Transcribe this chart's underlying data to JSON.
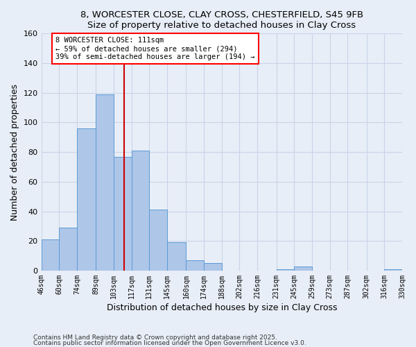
{
  "title1": "8, WORCESTER CLOSE, CLAY CROSS, CHESTERFIELD, S45 9FB",
  "title2": "Size of property relative to detached houses in Clay Cross",
  "xlabel": "Distribution of detached houses by size in Clay Cross",
  "ylabel": "Number of detached properties",
  "bin_edges": [
    46,
    60,
    74,
    89,
    103,
    117,
    131,
    145,
    160,
    174,
    188,
    202,
    216,
    231,
    245,
    259,
    273,
    287,
    302,
    316,
    330
  ],
  "bar_heights": [
    21,
    29,
    96,
    119,
    77,
    81,
    41,
    19,
    7,
    5,
    0,
    0,
    0,
    1,
    3,
    0,
    0,
    0,
    0,
    1
  ],
  "bar_color": "#aec6e8",
  "bar_edgecolor": "#5b9bd5",
  "bg_color": "#e8eef7",
  "grid_color": "#c8d4e8",
  "vline_x": 111,
  "vline_color": "#cc0000",
  "ylim": [
    0,
    160
  ],
  "yticks": [
    0,
    20,
    40,
    60,
    80,
    100,
    120,
    140,
    160
  ],
  "annotation_title": "8 WORCESTER CLOSE: 111sqm",
  "annotation_line1": "← 59% of detached houses are smaller (294)",
  "annotation_line2": "39% of semi-detached houses are larger (194) →",
  "footnote1": "Contains HM Land Registry data © Crown copyright and database right 2025.",
  "footnote2": "Contains public sector information licensed under the Open Government Licence v3.0."
}
